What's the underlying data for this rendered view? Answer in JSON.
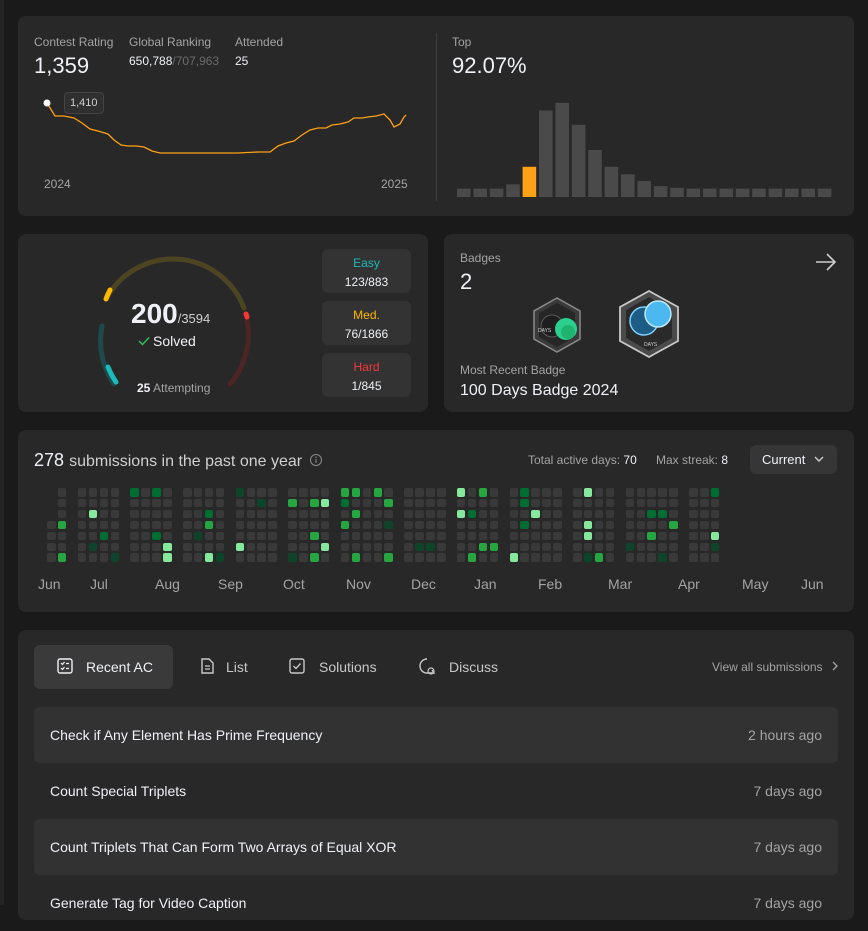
{
  "contest": {
    "rating_label": "Contest Rating",
    "rating_value": "1,359",
    "ranking_label": "Global Ranking",
    "ranking_value": "650,788",
    "ranking_total": "/707,963",
    "attended_label": "Attended",
    "attended_value": "25",
    "tooltip": "1,410",
    "x_start": "2024",
    "x_end": "2025",
    "top_label": "Top",
    "top_value": "92.07%",
    "line_color": "#ffa116",
    "histogram_values": [
      1,
      1,
      1,
      1.5,
      3.6,
      10.3,
      11.2,
      8.6,
      5.6,
      3.6,
      2.7,
      1.9,
      1.3,
      1.1,
      1,
      1,
      1,
      1,
      1,
      1,
      1,
      1,
      1
    ],
    "histogram_highlight_index": 4
  },
  "solved": {
    "solved_count": "200",
    "total": "/3594",
    "solved_label": "Solved",
    "attempting_count": "25",
    "attempting_label": "Attempting",
    "easy_label": "Easy",
    "easy_value": "123/883",
    "med_label": "Med.",
    "med_value": "76/1866",
    "hard_label": "Hard",
    "hard_value": "1/845",
    "easy_color": "#1cbaba",
    "med_color": "#ffb700",
    "hard_color": "#f63737"
  },
  "badges": {
    "label": "Badges",
    "count": "2",
    "recent_label": "Most Recent Badge",
    "recent_name": "100 Days Badge 2024",
    "badge1_text": "DAYS",
    "badge2_text": "DAYS"
  },
  "submissions": {
    "count": "278",
    "title_rest": "submissions in the past one year",
    "active_days_label": "Total active days:",
    "active_days_value": "70",
    "max_streak_label": "Max streak:",
    "max_streak_value": "8",
    "selector": "Current",
    "months": [
      "Jun",
      "Jul",
      "Aug",
      "Sep",
      "Oct",
      "Nov",
      "Dec",
      "Jan",
      "Feb",
      "Mar",
      "Apr",
      "May",
      "Jun"
    ]
  },
  "recent": {
    "tabs": [
      "Recent AC",
      "List",
      "Solutions",
      "Discuss"
    ],
    "view_all": "View all submissions",
    "items": [
      {
        "title": "Check if Any Element Has Prime Frequency",
        "time": "2 hours ago"
      },
      {
        "title": "Count Special Triplets",
        "time": "7 days ago"
      },
      {
        "title": "Count Triplets That Can Form Two Arrays of Equal XOR",
        "time": "7 days ago"
      },
      {
        "title": "Generate Tag for Video Caption",
        "time": "7 days ago"
      }
    ]
  }
}
